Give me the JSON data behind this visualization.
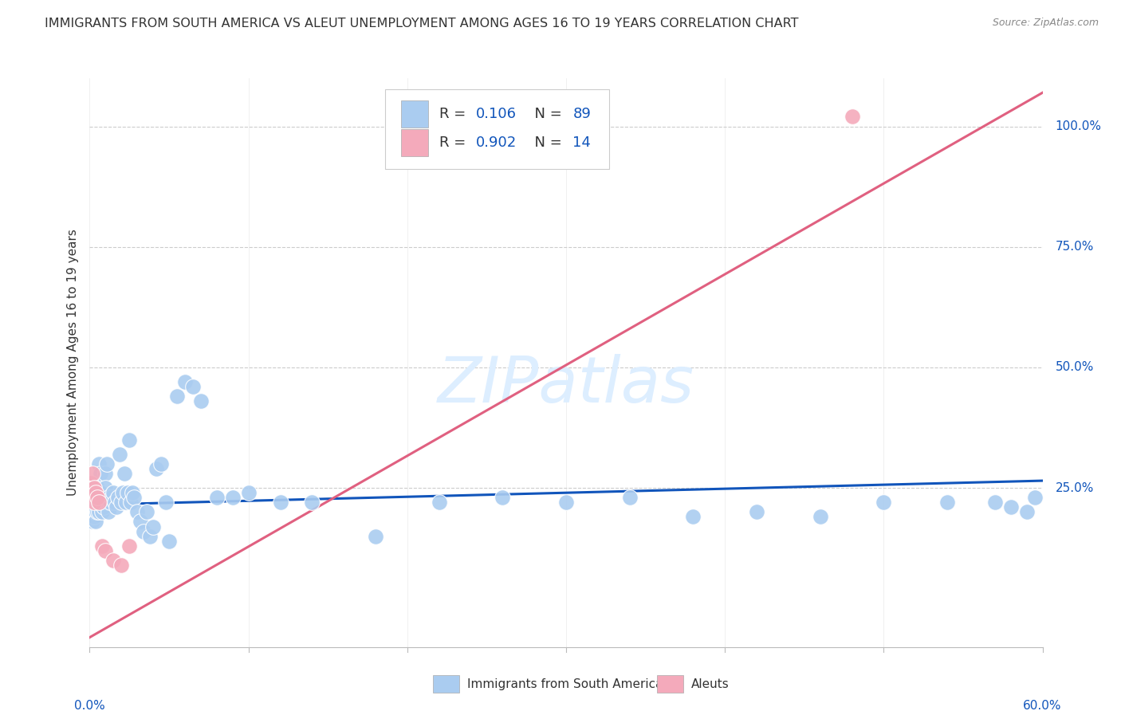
{
  "title": "IMMIGRANTS FROM SOUTH AMERICA VS ALEUT UNEMPLOYMENT AMONG AGES 16 TO 19 YEARS CORRELATION CHART",
  "source": "Source: ZipAtlas.com",
  "ylabel": "Unemployment Among Ages 16 to 19 years",
  "blue_R": "0.106",
  "blue_N": "89",
  "pink_R": "0.902",
  "pink_N": "14",
  "legend_label_blue": "Immigrants from South America",
  "legend_label_pink": "Aleuts",
  "blue_color": "#aaccf0",
  "pink_color": "#f4aabb",
  "blue_line_color": "#1155bb",
  "pink_line_color": "#e06080",
  "title_color": "#333333",
  "grid_color": "#cccccc",
  "axis_color": "#bbbbbb",
  "watermark_color": "#ddeeff",
  "background_color": "#ffffff",
  "xmin": 0.0,
  "xmax": 0.6,
  "ymin": -0.08,
  "ymax": 1.1,
  "blue_x": [
    0.001,
    0.001,
    0.001,
    0.001,
    0.001,
    0.002,
    0.002,
    0.002,
    0.002,
    0.002,
    0.002,
    0.003,
    0.003,
    0.003,
    0.003,
    0.003,
    0.004,
    0.004,
    0.004,
    0.004,
    0.004,
    0.005,
    0.005,
    0.005,
    0.006,
    0.006,
    0.006,
    0.007,
    0.007,
    0.007,
    0.008,
    0.008,
    0.009,
    0.009,
    0.01,
    0.01,
    0.011,
    0.011,
    0.012,
    0.012,
    0.013,
    0.014,
    0.015,
    0.016,
    0.017,
    0.018,
    0.019,
    0.02,
    0.021,
    0.022,
    0.023,
    0.024,
    0.025,
    0.026,
    0.027,
    0.028,
    0.03,
    0.032,
    0.034,
    0.036,
    0.038,
    0.04,
    0.042,
    0.045,
    0.048,
    0.05,
    0.055,
    0.06,
    0.065,
    0.07,
    0.08,
    0.09,
    0.1,
    0.12,
    0.14,
    0.18,
    0.22,
    0.26,
    0.3,
    0.34,
    0.38,
    0.42,
    0.46,
    0.5,
    0.54,
    0.57,
    0.58,
    0.59,
    0.595
  ],
  "blue_y": [
    0.21,
    0.19,
    0.23,
    0.22,
    0.2,
    0.24,
    0.2,
    0.18,
    0.22,
    0.26,
    0.21,
    0.23,
    0.19,
    0.21,
    0.2,
    0.22,
    0.24,
    0.2,
    0.22,
    0.18,
    0.23,
    0.25,
    0.22,
    0.2,
    0.3,
    0.22,
    0.2,
    0.28,
    0.22,
    0.24,
    0.22,
    0.2,
    0.23,
    0.21,
    0.28,
    0.25,
    0.3,
    0.22,
    0.23,
    0.2,
    0.22,
    0.23,
    0.24,
    0.22,
    0.21,
    0.23,
    0.32,
    0.22,
    0.24,
    0.28,
    0.22,
    0.24,
    0.35,
    0.22,
    0.24,
    0.23,
    0.2,
    0.18,
    0.16,
    0.2,
    0.15,
    0.17,
    0.29,
    0.3,
    0.22,
    0.14,
    0.44,
    0.47,
    0.46,
    0.43,
    0.23,
    0.23,
    0.24,
    0.22,
    0.22,
    0.15,
    0.22,
    0.23,
    0.22,
    0.23,
    0.19,
    0.2,
    0.19,
    0.22,
    0.22,
    0.22,
    0.21,
    0.2,
    0.23
  ],
  "pink_x": [
    0.001,
    0.002,
    0.002,
    0.003,
    0.003,
    0.004,
    0.005,
    0.006,
    0.008,
    0.01,
    0.015,
    0.02,
    0.025,
    0.48
  ],
  "pink_y": [
    0.26,
    0.28,
    0.24,
    0.22,
    0.25,
    0.24,
    0.23,
    0.22,
    0.13,
    0.12,
    0.1,
    0.09,
    0.13,
    1.02
  ],
  "blue_trend_x": [
    0.0,
    0.6
  ],
  "blue_trend_y": [
    0.215,
    0.265
  ],
  "pink_trend_x": [
    0.0,
    0.6
  ],
  "pink_trend_y": [
    -0.06,
    1.07
  ]
}
